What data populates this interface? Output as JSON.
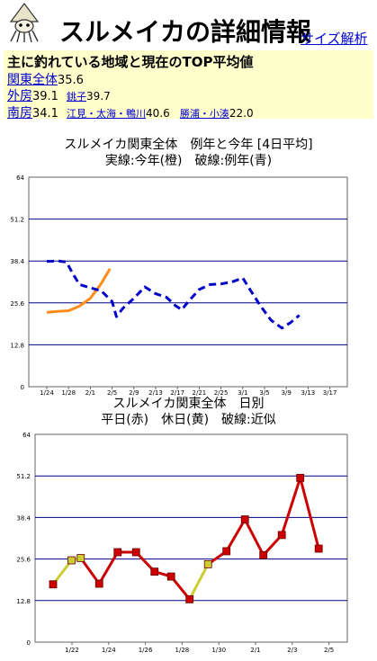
{
  "header": {
    "title": "スルメイカの詳細情報",
    "size_link": "サイズ解析"
  },
  "summary": {
    "heading": "主に釣れている地域と現在のTOP平均値",
    "kanto_label": "関東全体",
    "kanto_value": "35.6",
    "sotobo_label": "外房",
    "sotobo_value": "39.1",
    "choshi_label": "銚子",
    "choshi_value": "39.7",
    "minamibo_label": "南房",
    "minamibo_value": "34.1",
    "emi_label": "江見・太海・鴨川",
    "emi_value": "40.6",
    "katsuura_label": "勝浦・小湊",
    "katsuura_value": "22.0"
  },
  "chart1": {
    "title_line1": "スルメイカ関東全体　例年と今年 [4日平均]",
    "title_line2": "実線:今年(橙)　破線:例年(青)"
  },
  "chart2": {
    "title_line1": "スルメイカ関東全体　日別",
    "title_line2": "平日(赤)　休日(黄)　破線:近似"
  },
  "colors": {
    "accent_blue": "#0000cc",
    "summary_bg": "#ffffcc",
    "this_year": "#ff8c1a",
    "avg_year": "#0000cc",
    "weekday": "#cc0000",
    "holiday": "#cccc33"
  },
  "chart_data": [
    {
      "type": "line",
      "title": "スルメイカ関東全体　例年と今年 [4日平均]",
      "subtitle": "実線:今年(橙)　破線:例年(青)",
      "categories": [
        "1/24",
        "1/28",
        "2/1",
        "2/5",
        "2/9",
        "2/13",
        "2/17",
        "2/21",
        "2/25",
        "3/1",
        "3/5",
        "3/9",
        "3/13",
        "3/17"
      ],
      "yticks": [
        "0",
        "12.8",
        "25.6",
        "38.4",
        "51.2",
        "64"
      ],
      "ylim": [
        0,
        64
      ],
      "grid": true,
      "series": [
        {
          "key": "this_year",
          "style": "solid",
          "color": "#ff8c1a",
          "points": [
            [
              0.0,
              22.7
            ],
            [
              0.5,
              23.0
            ],
            [
              1.0,
              23.2
            ],
            [
              1.5,
              24.6
            ],
            [
              2.0,
              27.0
            ],
            [
              2.5,
              31.5
            ],
            [
              2.9,
              36.0
            ]
          ]
        },
        {
          "key": "avg_year",
          "style": "dashed",
          "color": "#0000cc",
          "points": [
            [
              0.0,
              38.3
            ],
            [
              0.5,
              38.4
            ],
            [
              0.9,
              38.1
            ],
            [
              1.2,
              34.5
            ],
            [
              1.5,
              31.2
            ],
            [
              2.0,
              30.2
            ],
            [
              2.5,
              29.3
            ],
            [
              3.0,
              26.0
            ],
            [
              3.2,
              21.4
            ],
            [
              3.5,
              24.0
            ],
            [
              4.0,
              27.0
            ],
            [
              4.5,
              30.5
            ],
            [
              5.0,
              28.4
            ],
            [
              5.5,
              27.3
            ],
            [
              5.9,
              24.8
            ],
            [
              6.2,
              23.5
            ],
            [
              6.5,
              26.0
            ],
            [
              7.0,
              29.7
            ],
            [
              7.5,
              31.2
            ],
            [
              8.0,
              31.4
            ],
            [
              8.5,
              32.0
            ],
            [
              9.0,
              33.2
            ],
            [
              9.3,
              30.0
            ],
            [
              9.8,
              24.8
            ],
            [
              10.3,
              20.3
            ],
            [
              10.8,
              17.9
            ],
            [
              11.2,
              19.6
            ],
            [
              11.6,
              21.8
            ]
          ]
        }
      ]
    },
    {
      "type": "line",
      "title": "スルメイカ関東全体　日別",
      "subtitle": "平日(赤)　休日(黄)　破線:近似",
      "categories": [
        "1/22",
        "1/24",
        "1/26",
        "1/28",
        "1/30",
        "2/1",
        "2/3",
        "2/5"
      ],
      "yticks": [
        "0",
        "12.8",
        "25.6",
        "38.4",
        "51.2",
        "64"
      ],
      "ylim": [
        0,
        64
      ],
      "grid": true,
      "points": [
        {
          "x": 0.0,
          "y": 17.8,
          "kind": "weekday"
        },
        {
          "x": 1.0,
          "y": 25.2,
          "kind": "holiday"
        },
        {
          "x": 1.5,
          "y": 25.9,
          "kind": "holiday"
        },
        {
          "x": 2.5,
          "y": 18.0,
          "kind": "weekday"
        },
        {
          "x": 3.5,
          "y": 27.7,
          "kind": "weekday"
        },
        {
          "x": 4.5,
          "y": 27.7,
          "kind": "weekday"
        },
        {
          "x": 5.5,
          "y": 21.7,
          "kind": "weekday"
        },
        {
          "x": 6.4,
          "y": 20.2,
          "kind": "weekday"
        },
        {
          "x": 7.4,
          "y": 13.2,
          "kind": "weekday"
        },
        {
          "x": 8.4,
          "y": 24.0,
          "kind": "holiday"
        },
        {
          "x": 9.4,
          "y": 28.0,
          "kind": "weekday"
        },
        {
          "x": 10.4,
          "y": 37.8,
          "kind": "weekday"
        },
        {
          "x": 11.4,
          "y": 26.8,
          "kind": "weekday"
        },
        {
          "x": 12.4,
          "y": 33.0,
          "kind": "weekday"
        },
        {
          "x": 13.4,
          "y": 50.6,
          "kind": "weekday"
        },
        {
          "x": 14.4,
          "y": 28.8,
          "kind": "weekday"
        }
      ],
      "segment_colors": [
        "holiday",
        "holiday",
        "weekday",
        "weekday",
        "weekday",
        "weekday",
        "weekday",
        "weekday",
        "holiday",
        "weekday",
        "weekday",
        "weekday",
        "weekday",
        "weekday",
        "weekday"
      ]
    }
  ]
}
